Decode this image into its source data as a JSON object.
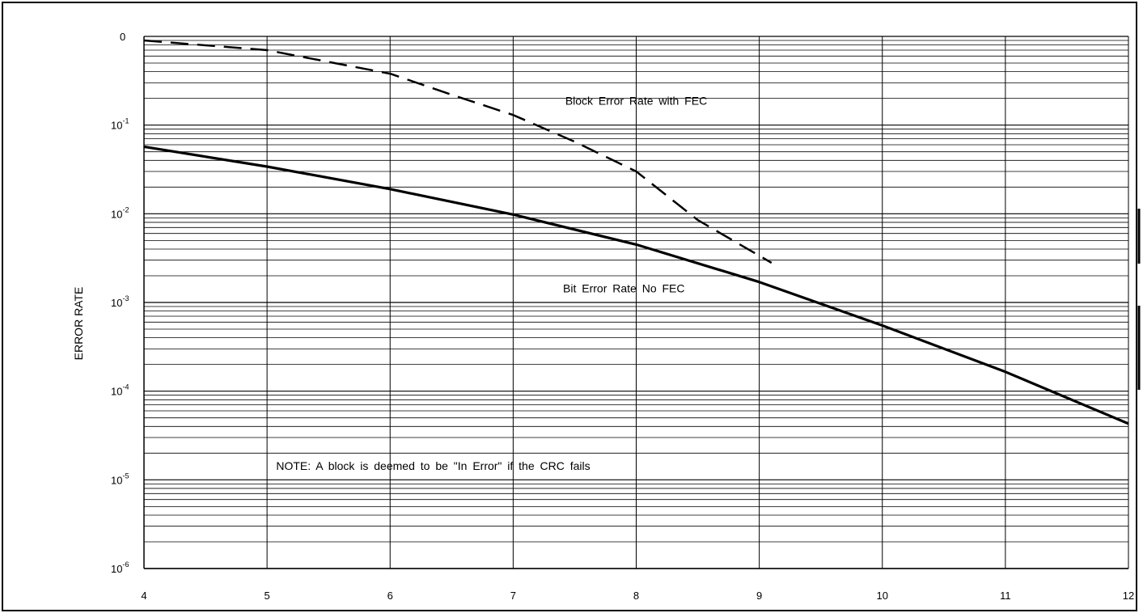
{
  "chart_data": {
    "type": "line",
    "title": "",
    "xlabel": "",
    "ylabel": "ERROR RATE",
    "x_scale": "linear",
    "y_scale": "log",
    "xlim": [
      4,
      12
    ],
    "ylim": [
      1e-06,
      1
    ],
    "grid": true,
    "x_ticks": [
      "4",
      "5",
      "6",
      "7",
      "8",
      "9",
      "10",
      "11",
      "12"
    ],
    "y_ticks": [
      {
        "value": 1,
        "base": "0",
        "exp": ""
      },
      {
        "value": 0.1,
        "base": "10",
        "exp": "-1"
      },
      {
        "value": 0.01,
        "base": "10",
        "exp": "-2"
      },
      {
        "value": 0.001,
        "base": "10",
        "exp": "-3"
      },
      {
        "value": 0.0001,
        "base": "10",
        "exp": "-4"
      },
      {
        "value": 1e-05,
        "base": "10",
        "exp": "-5"
      },
      {
        "value": 1e-06,
        "base": "10",
        "exp": "-6"
      }
    ],
    "series": [
      {
        "style": "dashed",
        "x": [
          4.0,
          5.0,
          6.0,
          6.5,
          7.0,
          7.5,
          8.0,
          8.5,
          9.1
        ],
        "y": [
          0.9,
          0.7,
          0.38,
          0.22,
          0.13,
          0.065,
          0.03,
          0.0085,
          0.0028
        ]
      },
      {
        "style": "solid",
        "x": [
          4.0,
          5.0,
          6.0,
          7.0,
          8.0,
          9.0,
          10.0,
          11.0,
          12.0
        ],
        "y": [
          0.057,
          0.034,
          0.019,
          0.0098,
          0.0045,
          0.0017,
          0.00055,
          0.000165,
          4.3e-05
        ]
      }
    ],
    "annotations": [
      {
        "text": "Block Error Rate with FEC",
        "x": 8.0,
        "y": 0.17
      },
      {
        "text": "Bit Error Rate No FEC",
        "x": 7.9,
        "y": 0.0013
      },
      {
        "text": "NOTE: A block is deemed to be \"In Error\" if the CRC fails",
        "x": 6.35,
        "y": 1.3e-05
      }
    ]
  }
}
